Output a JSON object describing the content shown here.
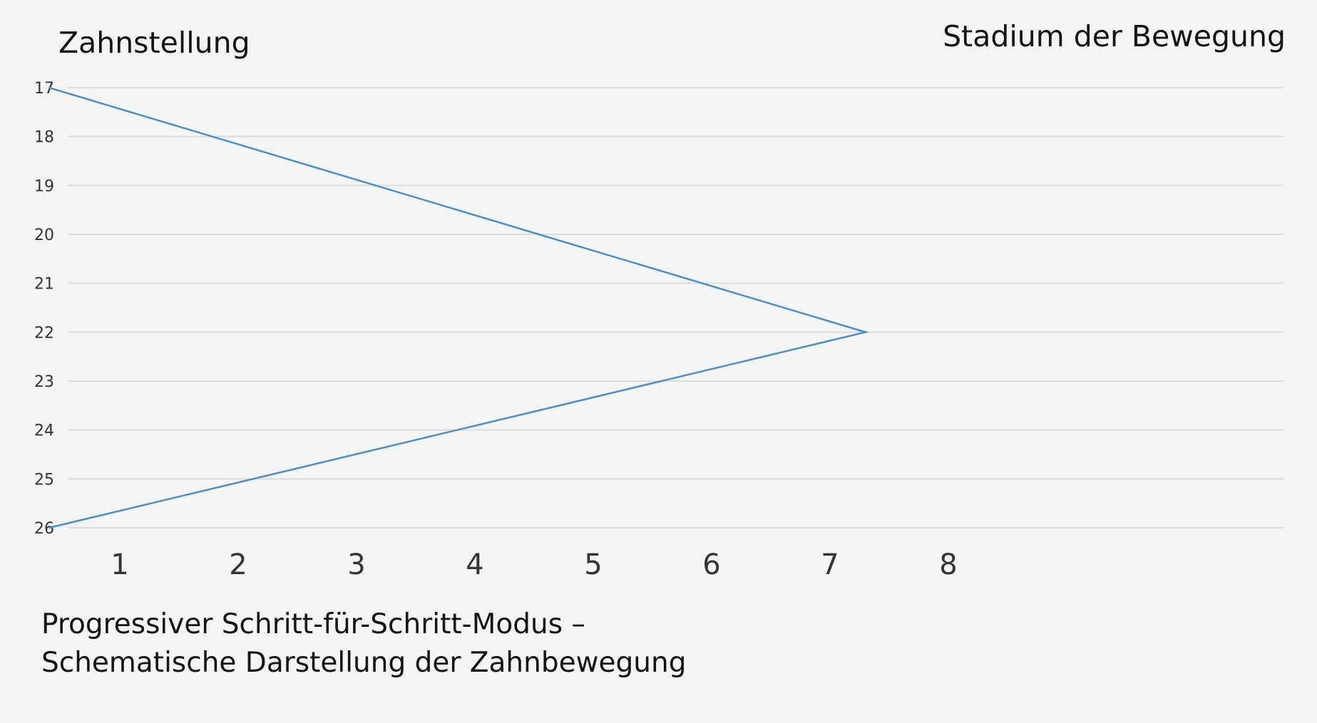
{
  "chart_data": {
    "type": "line",
    "ylabel": "Zahnstellung",
    "xlabel": "Stadium der Bewegung",
    "caption": [
      "Progressiver Schritt-für-Schritt-Modus –",
      "Schematische Darstellung der Zahnbewegung"
    ],
    "x_ticks": [
      1,
      2,
      3,
      4,
      5,
      6,
      7,
      8
    ],
    "y_ticks": [
      17,
      18,
      19,
      20,
      21,
      22,
      23,
      24,
      25,
      26
    ],
    "y_inverted": true,
    "grid": "horizontal",
    "series": [
      {
        "x": [
          0.4,
          7.3,
          0.4
        ],
        "y": [
          17,
          22,
          26
        ]
      }
    ],
    "colors": {
      "line": "#4a90c6",
      "grid": "#dcdcdc",
      "tick_text": "#333333",
      "background": "#f4f4f4"
    }
  }
}
